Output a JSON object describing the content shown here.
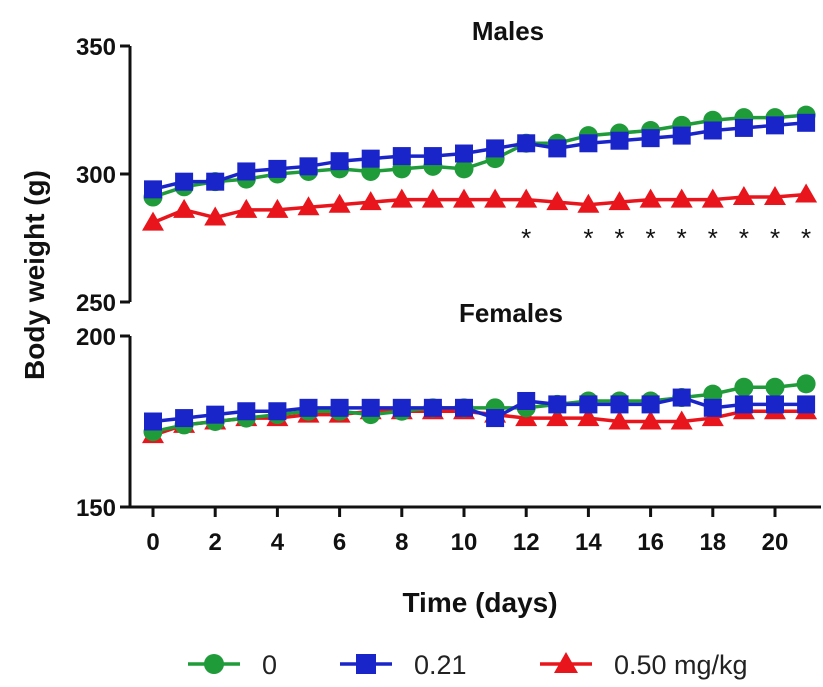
{
  "chart_data": [
    {
      "type": "line",
      "title": "Males",
      "ylabel": "Body weight (g)",
      "xlabel": "Time (days)",
      "ylim": [
        250,
        350
      ],
      "yticks": [
        250,
        300,
        350
      ],
      "x": [
        0,
        1,
        2,
        3,
        4,
        5,
        6,
        7,
        8,
        9,
        10,
        11,
        12,
        13,
        14,
        15,
        16,
        17,
        18,
        19,
        20,
        21
      ],
      "series": [
        {
          "name": "0",
          "color": "#1f9b3a",
          "marker": "circle",
          "values": [
            291,
            295,
            297,
            298,
            300,
            301,
            302,
            301,
            302,
            303,
            302,
            306,
            312,
            312,
            315,
            316,
            317,
            319,
            321,
            322,
            322,
            323
          ]
        },
        {
          "name": "0.21",
          "color": "#1a25c9",
          "marker": "square",
          "values": [
            294,
            297,
            297,
            301,
            302,
            303,
            305,
            306,
            307,
            307,
            308,
            310,
            312,
            310,
            312,
            313,
            314,
            315,
            317,
            318,
            319,
            320
          ]
        },
        {
          "name": "0.50 mg/kg",
          "color": "#e8161c",
          "marker": "triangle",
          "values": [
            281,
            286,
            283,
            286,
            286,
            287,
            288,
            289,
            290,
            290,
            290,
            290,
            290,
            289,
            288,
            289,
            290,
            290,
            290,
            291,
            291,
            292
          ]
        }
      ],
      "significance_marker": "*",
      "significant_days": [
        12,
        14,
        15,
        16,
        17,
        18,
        19,
        20,
        21
      ]
    },
    {
      "type": "line",
      "title": "Females",
      "xlabel": "Time (days)",
      "ylim": [
        150,
        200
      ],
      "yticks": [
        150,
        200
      ],
      "x": [
        0,
        1,
        2,
        3,
        4,
        5,
        6,
        7,
        8,
        9,
        10,
        11,
        12,
        13,
        14,
        15,
        16,
        17,
        18,
        19,
        20,
        21
      ],
      "series": [
        {
          "name": "0",
          "color": "#1f9b3a",
          "marker": "circle",
          "values": [
            172,
            174,
            175,
            176,
            177,
            178,
            178,
            177,
            178,
            179,
            179,
            179,
            179,
            180,
            181,
            181,
            181,
            182,
            183,
            185,
            185,
            186
          ]
        },
        {
          "name": "0.21",
          "color": "#1a25c9",
          "marker": "square",
          "values": [
            175,
            176,
            177,
            178,
            178,
            179,
            179,
            179,
            179,
            179,
            179,
            176,
            181,
            180,
            180,
            180,
            180,
            182,
            179,
            180,
            180,
            180
          ]
        },
        {
          "name": "0.50 mg/kg",
          "color": "#e8161c",
          "marker": "triangle",
          "values": [
            171,
            174,
            175,
            176,
            176,
            177,
            177,
            178,
            178,
            178,
            178,
            177,
            176,
            176,
            176,
            175,
            175,
            175,
            176,
            178,
            178,
            178
          ]
        }
      ]
    }
  ],
  "xticks": [
    0,
    2,
    4,
    6,
    8,
    10,
    12,
    14,
    16,
    18,
    20
  ],
  "legend": {
    "placement": "bottom",
    "items": [
      {
        "label": "0",
        "color": "#1f9b3a",
        "marker": "circle"
      },
      {
        "label": "0.21",
        "color": "#1a25c9",
        "marker": "square"
      },
      {
        "label": "0.50 mg/kg",
        "color": "#e8161c",
        "marker": "triangle"
      }
    ]
  }
}
